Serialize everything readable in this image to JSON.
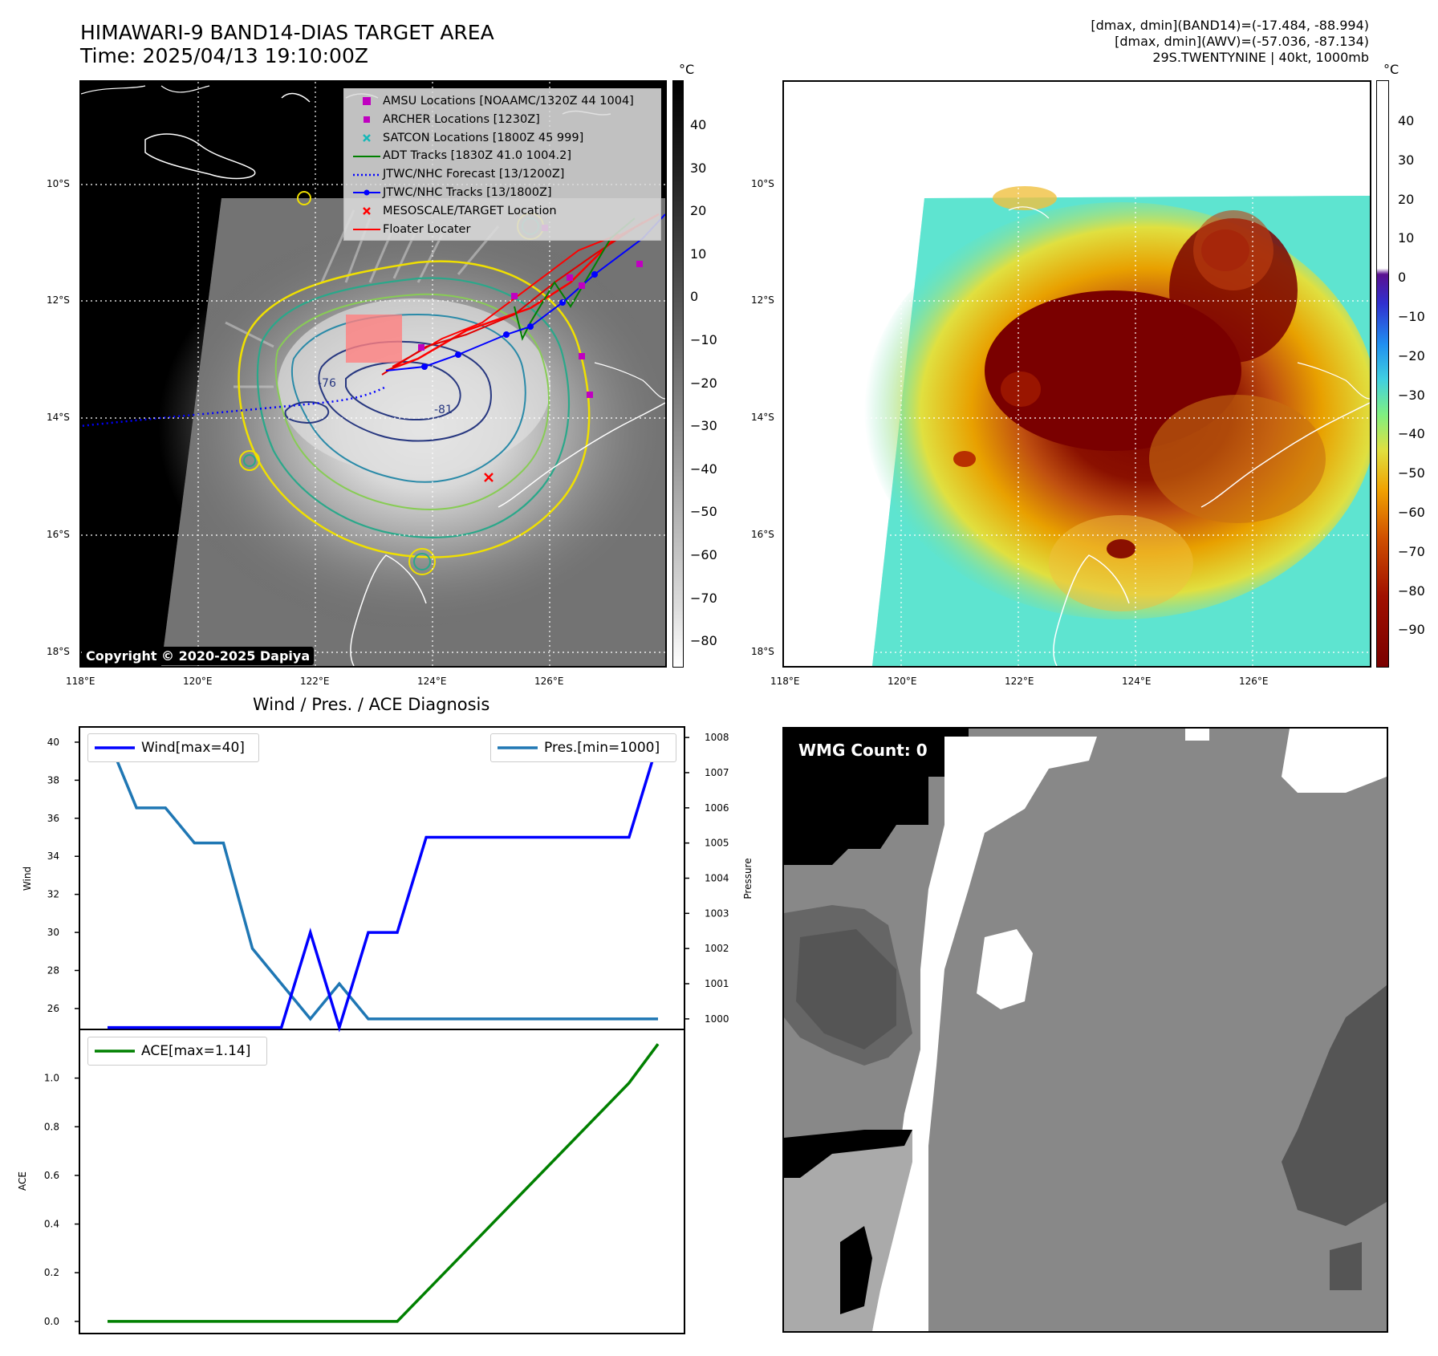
{
  "header": {
    "title_line1": "HIMAWARI-9 BAND14-DIAS TARGET AREA",
    "title_line2": "Time: 2025/04/13 19:10:00Z",
    "info_line1": "[dmax, dmin](BAND14)=(-17.484, -88.994)",
    "info_line2": "[dmax, dmin](AWV)=(-57.036, -87.134)",
    "info_line3": "29S.TWENTYNINE | 40kt, 1000mb"
  },
  "map": {
    "lat_labels": [
      "10°S",
      "12°S",
      "14°S",
      "16°S",
      "18°S"
    ],
    "lon_labels": [
      "118°E",
      "120°E",
      "122°E",
      "124°E",
      "126°E"
    ],
    "contour_labels": [
      "-76",
      "-81"
    ],
    "copyright": "Copyright © 2020-2025 Dapiya",
    "legend": [
      {
        "label": "AMSU Locations [NOAAMC/1320Z 44 1004]",
        "color": "#c000c0",
        "symbol": "square"
      },
      {
        "label": "ARCHER Locations [1230Z]",
        "color": "#c000c0",
        "symbol": "square-small"
      },
      {
        "label": "SATCON Locations [1800Z 45 999]",
        "color": "#18b8b8",
        "symbol": "x"
      },
      {
        "label": "ADT Tracks [1830Z 41.0 1004.2]",
        "color": "#008000",
        "symbol": "line"
      },
      {
        "label": "JTWC/NHC Forecast [13/1200Z]",
        "color": "#0000ff",
        "symbol": "dotted"
      },
      {
        "label": "JTWC/NHC Tracks [13/1800Z]",
        "color": "#0000ff",
        "symbol": "line-dot"
      },
      {
        "label": "MESOSCALE/TARGET Location",
        "color": "#ff0000",
        "symbol": "x"
      },
      {
        "label": "Floater Locater",
        "color": "#ff0000",
        "symbol": "line"
      }
    ]
  },
  "colorbar_left": {
    "unit": "°C",
    "labels": [
      "40",
      "30",
      "20",
      "10",
      "0",
      "−10",
      "−20",
      "−30",
      "−40",
      "−50",
      "−60",
      "−70",
      "−80"
    ]
  },
  "colorbar_right": {
    "unit": "°C",
    "labels": [
      "40",
      "30",
      "20",
      "10",
      "0",
      "−10",
      "−20",
      "−30",
      "−40",
      "−50",
      "−60",
      "−70",
      "−80",
      "−90"
    ]
  },
  "chart_data": [
    {
      "type": "line",
      "title": "Wind / Pres. / ACE Diagnosis",
      "ylabel": "Wind",
      "y2label": "Pressure",
      "ylim": [
        24.9,
        40.8
      ],
      "y2lim": [
        999.7,
        1008.3
      ],
      "yticks": [
        26,
        28,
        30,
        32,
        34,
        36,
        38,
        40
      ],
      "y2ticks": [
        1000,
        1001,
        1002,
        1003,
        1004,
        1005,
        1006,
        1007,
        1008
      ],
      "x": [
        0,
        1,
        2,
        3,
        4,
        5,
        6,
        7,
        8,
        9,
        10,
        11,
        12,
        13,
        14,
        15,
        16,
        17,
        18,
        19
      ],
      "series": [
        {
          "name": "Wind[max=40]",
          "axis": "left",
          "color": "#0000ff",
          "values": [
            25,
            25,
            25,
            25,
            25,
            25,
            25,
            30,
            25,
            30,
            30,
            35,
            35,
            35,
            35,
            35,
            35,
            35,
            35,
            40
          ]
        },
        {
          "name": "Pres.[min=1000]",
          "axis": "right",
          "color": "#1f77b4",
          "values": [
            1008,
            1006,
            1006,
            1005,
            1005,
            1002,
            1001,
            1000,
            1001,
            1000,
            1000,
            1000,
            1000,
            1000,
            1000,
            1000,
            1000,
            1000,
            1000,
            1000
          ]
        }
      ]
    },
    {
      "type": "line",
      "ylabel": "ACE",
      "ylim": [
        -0.05,
        1.2
      ],
      "yticks": [
        "0.0",
        "0.2",
        "0.4",
        "0.6",
        "0.8",
        "1.0"
      ],
      "x": [
        0,
        1,
        2,
        3,
        4,
        5,
        6,
        7,
        8,
        9,
        10,
        11,
        12,
        13,
        14,
        15,
        16,
        17,
        18,
        19
      ],
      "series": [
        {
          "name": "ACE[max=1.14]",
          "color": "#008000",
          "values": [
            0,
            0,
            0,
            0,
            0,
            0,
            0,
            0,
            0,
            0,
            0,
            0.1225,
            0.245,
            0.3675,
            0.49,
            0.6125,
            0.735,
            0.8575,
            0.98,
            1.14
          ]
        }
      ]
    }
  ],
  "wmg": {
    "label": "WMG Count: 0"
  }
}
